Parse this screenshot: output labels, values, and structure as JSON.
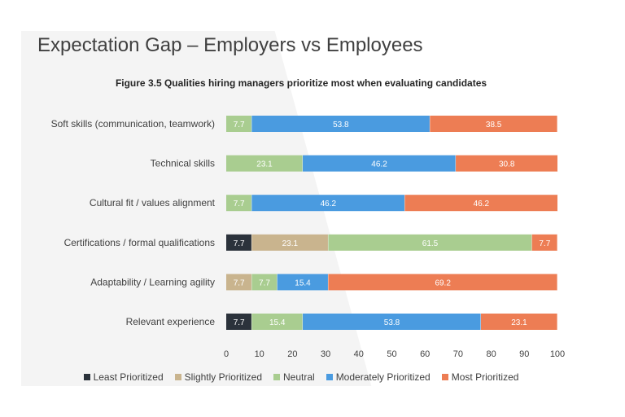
{
  "page": {
    "title": "Expectation Gap – Employers vs Employees"
  },
  "colors": {
    "least": "#2b323b",
    "slightly": "#c9b48e",
    "neutral": "#a9cd90",
    "moderately": "#4a9be0",
    "most": "#ed7d54"
  },
  "chart_data": {
    "type": "bar",
    "orientation": "horizontal",
    "stacked": true,
    "title": "Figure 3.5 Qualities hiring managers prioritize most when evaluating candidates",
    "categories": [
      "Soft skills (communication, teamwork)",
      "Technical skills",
      "Cultural fit / values alignment",
      "Certifications / formal qualifications",
      "Adaptability / Learning agility",
      "Relevant experience"
    ],
    "series": [
      {
        "name": "Least Prioritized",
        "color_key": "least",
        "values": [
          0,
          0,
          0,
          7.7,
          0,
          7.7
        ]
      },
      {
        "name": "Slightly Prioritized",
        "color_key": "slightly",
        "values": [
          0,
          0,
          0,
          23.1,
          7.7,
          0
        ]
      },
      {
        "name": "Neutral",
        "color_key": "neutral",
        "values": [
          7.7,
          23.1,
          7.7,
          61.5,
          7.7,
          15.4
        ]
      },
      {
        "name": "Moderately Prioritized",
        "color_key": "moderately",
        "values": [
          53.8,
          46.2,
          46.2,
          0,
          15.4,
          53.8
        ]
      },
      {
        "name": "Most Prioritized",
        "color_key": "most",
        "values": [
          38.5,
          30.8,
          46.2,
          7.7,
          69.2,
          23.1
        ]
      }
    ],
    "xlim": [
      0,
      100
    ],
    "xticks": [
      0,
      10,
      20,
      30,
      40,
      50,
      60,
      70,
      80,
      90,
      100
    ],
    "xlabel": "",
    "ylabel": "",
    "grid": false,
    "legend_position": "bottom"
  }
}
